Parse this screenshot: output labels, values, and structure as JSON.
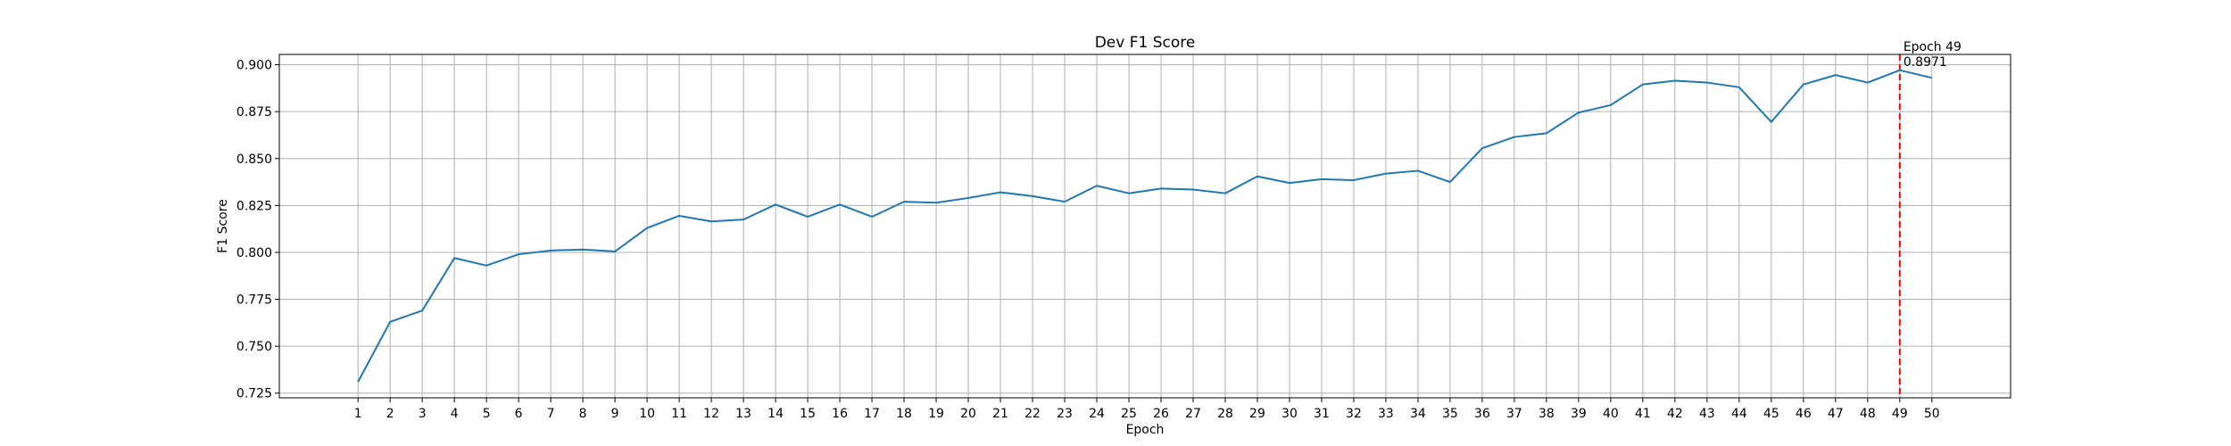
{
  "chart_data": {
    "type": "line",
    "title": "Dev F1 Score",
    "xlabel": "Epoch",
    "ylabel": "F1 Score",
    "x": [
      1,
      2,
      3,
      4,
      5,
      6,
      7,
      8,
      9,
      10,
      11,
      12,
      13,
      14,
      15,
      16,
      17,
      18,
      19,
      20,
      21,
      22,
      23,
      24,
      25,
      26,
      27,
      28,
      29,
      30,
      31,
      32,
      33,
      34,
      35,
      36,
      37,
      38,
      39,
      40,
      41,
      42,
      43,
      44,
      45,
      46,
      47,
      48,
      49,
      50
    ],
    "series": [
      {
        "color": "#1f77b4",
        "values": [
          0.731,
          0.763,
          0.769,
          0.797,
          0.793,
          0.799,
          0.801,
          0.8015,
          0.8005,
          0.813,
          0.8195,
          0.8165,
          0.8175,
          0.8255,
          0.819,
          0.8255,
          0.819,
          0.827,
          0.8265,
          0.829,
          0.832,
          0.83,
          0.827,
          0.8355,
          0.8315,
          0.834,
          0.8335,
          0.8315,
          0.8405,
          0.837,
          0.839,
          0.8385,
          0.842,
          0.8435,
          0.8375,
          0.8555,
          0.8615,
          0.8635,
          0.8745,
          0.8785,
          0.8895,
          0.8915,
          0.8905,
          0.888,
          0.8695,
          0.8895,
          0.8945,
          0.8905,
          0.8971,
          0.893
        ]
      }
    ],
    "xticks": [
      "1",
      "2",
      "3",
      "4",
      "5",
      "6",
      "7",
      "8",
      "9",
      "10",
      "11",
      "12",
      "13",
      "14",
      "15",
      "16",
      "17",
      "18",
      "19",
      "20",
      "21",
      "22",
      "23",
      "24",
      "25",
      "26",
      "27",
      "28",
      "29",
      "30",
      "31",
      "32",
      "33",
      "34",
      "35",
      "36",
      "37",
      "38",
      "39",
      "40",
      "41",
      "42",
      "43",
      "44",
      "45",
      "46",
      "47",
      "48",
      "49",
      "50"
    ],
    "yticks": [
      "0.725",
      "0.750",
      "0.775",
      "0.800",
      "0.825",
      "0.850",
      "0.875",
      "0.900"
    ],
    "ytick_values": [
      0.725,
      0.75,
      0.775,
      0.8,
      0.825,
      0.85,
      0.875,
      0.9
    ],
    "xlim": [
      -1.45,
      52.45
    ],
    "ylim": [
      0.7225,
      0.9055
    ],
    "grid": true,
    "vline": {
      "x": 49,
      "color": "#ff0000",
      "style": "dashed"
    },
    "annotation": {
      "x": 49,
      "line1": "Epoch 49",
      "line2": "0.8971"
    }
  }
}
